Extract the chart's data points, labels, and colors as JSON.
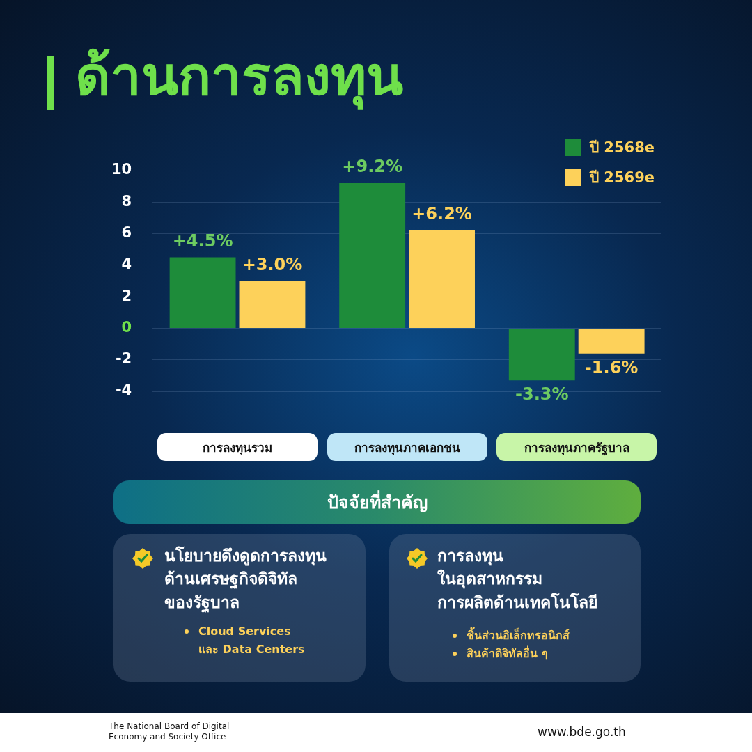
{
  "chart_data": {
    "type": "bar",
    "title": "ด้านการลงทุน",
    "categories": [
      "การลงทุนรวม",
      "การลงทุนภาคเอกชน",
      "การลงทุนภาครัฐบาล"
    ],
    "series": [
      {
        "name": "ปี 2568e",
        "color": "#1e8c3a",
        "values": [
          4.5,
          9.2,
          -3.3
        ],
        "value_labels": [
          "+4.5%",
          "+9.2%",
          "-3.3%"
        ]
      },
      {
        "name": "ปี 2569e",
        "color": "#fdd15a",
        "values": [
          3.0,
          6.2,
          -1.6
        ],
        "value_labels": [
          "+3.0%",
          "+6.2%",
          "-1.6%"
        ]
      }
    ],
    "ylim": [
      -4,
      10
    ],
    "yticks": [
      -4,
      -2,
      0,
      2,
      4,
      6,
      8,
      10
    ],
    "grid": "y",
    "legend": "top right",
    "annotations": [
      "ปัจจัยที่สำคัญ",
      "นโยบายดึงดูดการลงทุน\nด้านเศรษฐกิจดิจิทัล\nของรัฐบาล",
      "Cloud Services\nและ Data Centers",
      "การลงทุน\nในอุตสาหกรรม\nการผลิตด้านเทคโนโลยี",
      "ชิ้นส่วนอิเล็กทรอนิกส์",
      "สินค้าดิจิทัลอื่น ๆ",
      "The National Board of Digital\nEconomy and Society Office",
      "www.bde.go.th"
    ]
  }
}
